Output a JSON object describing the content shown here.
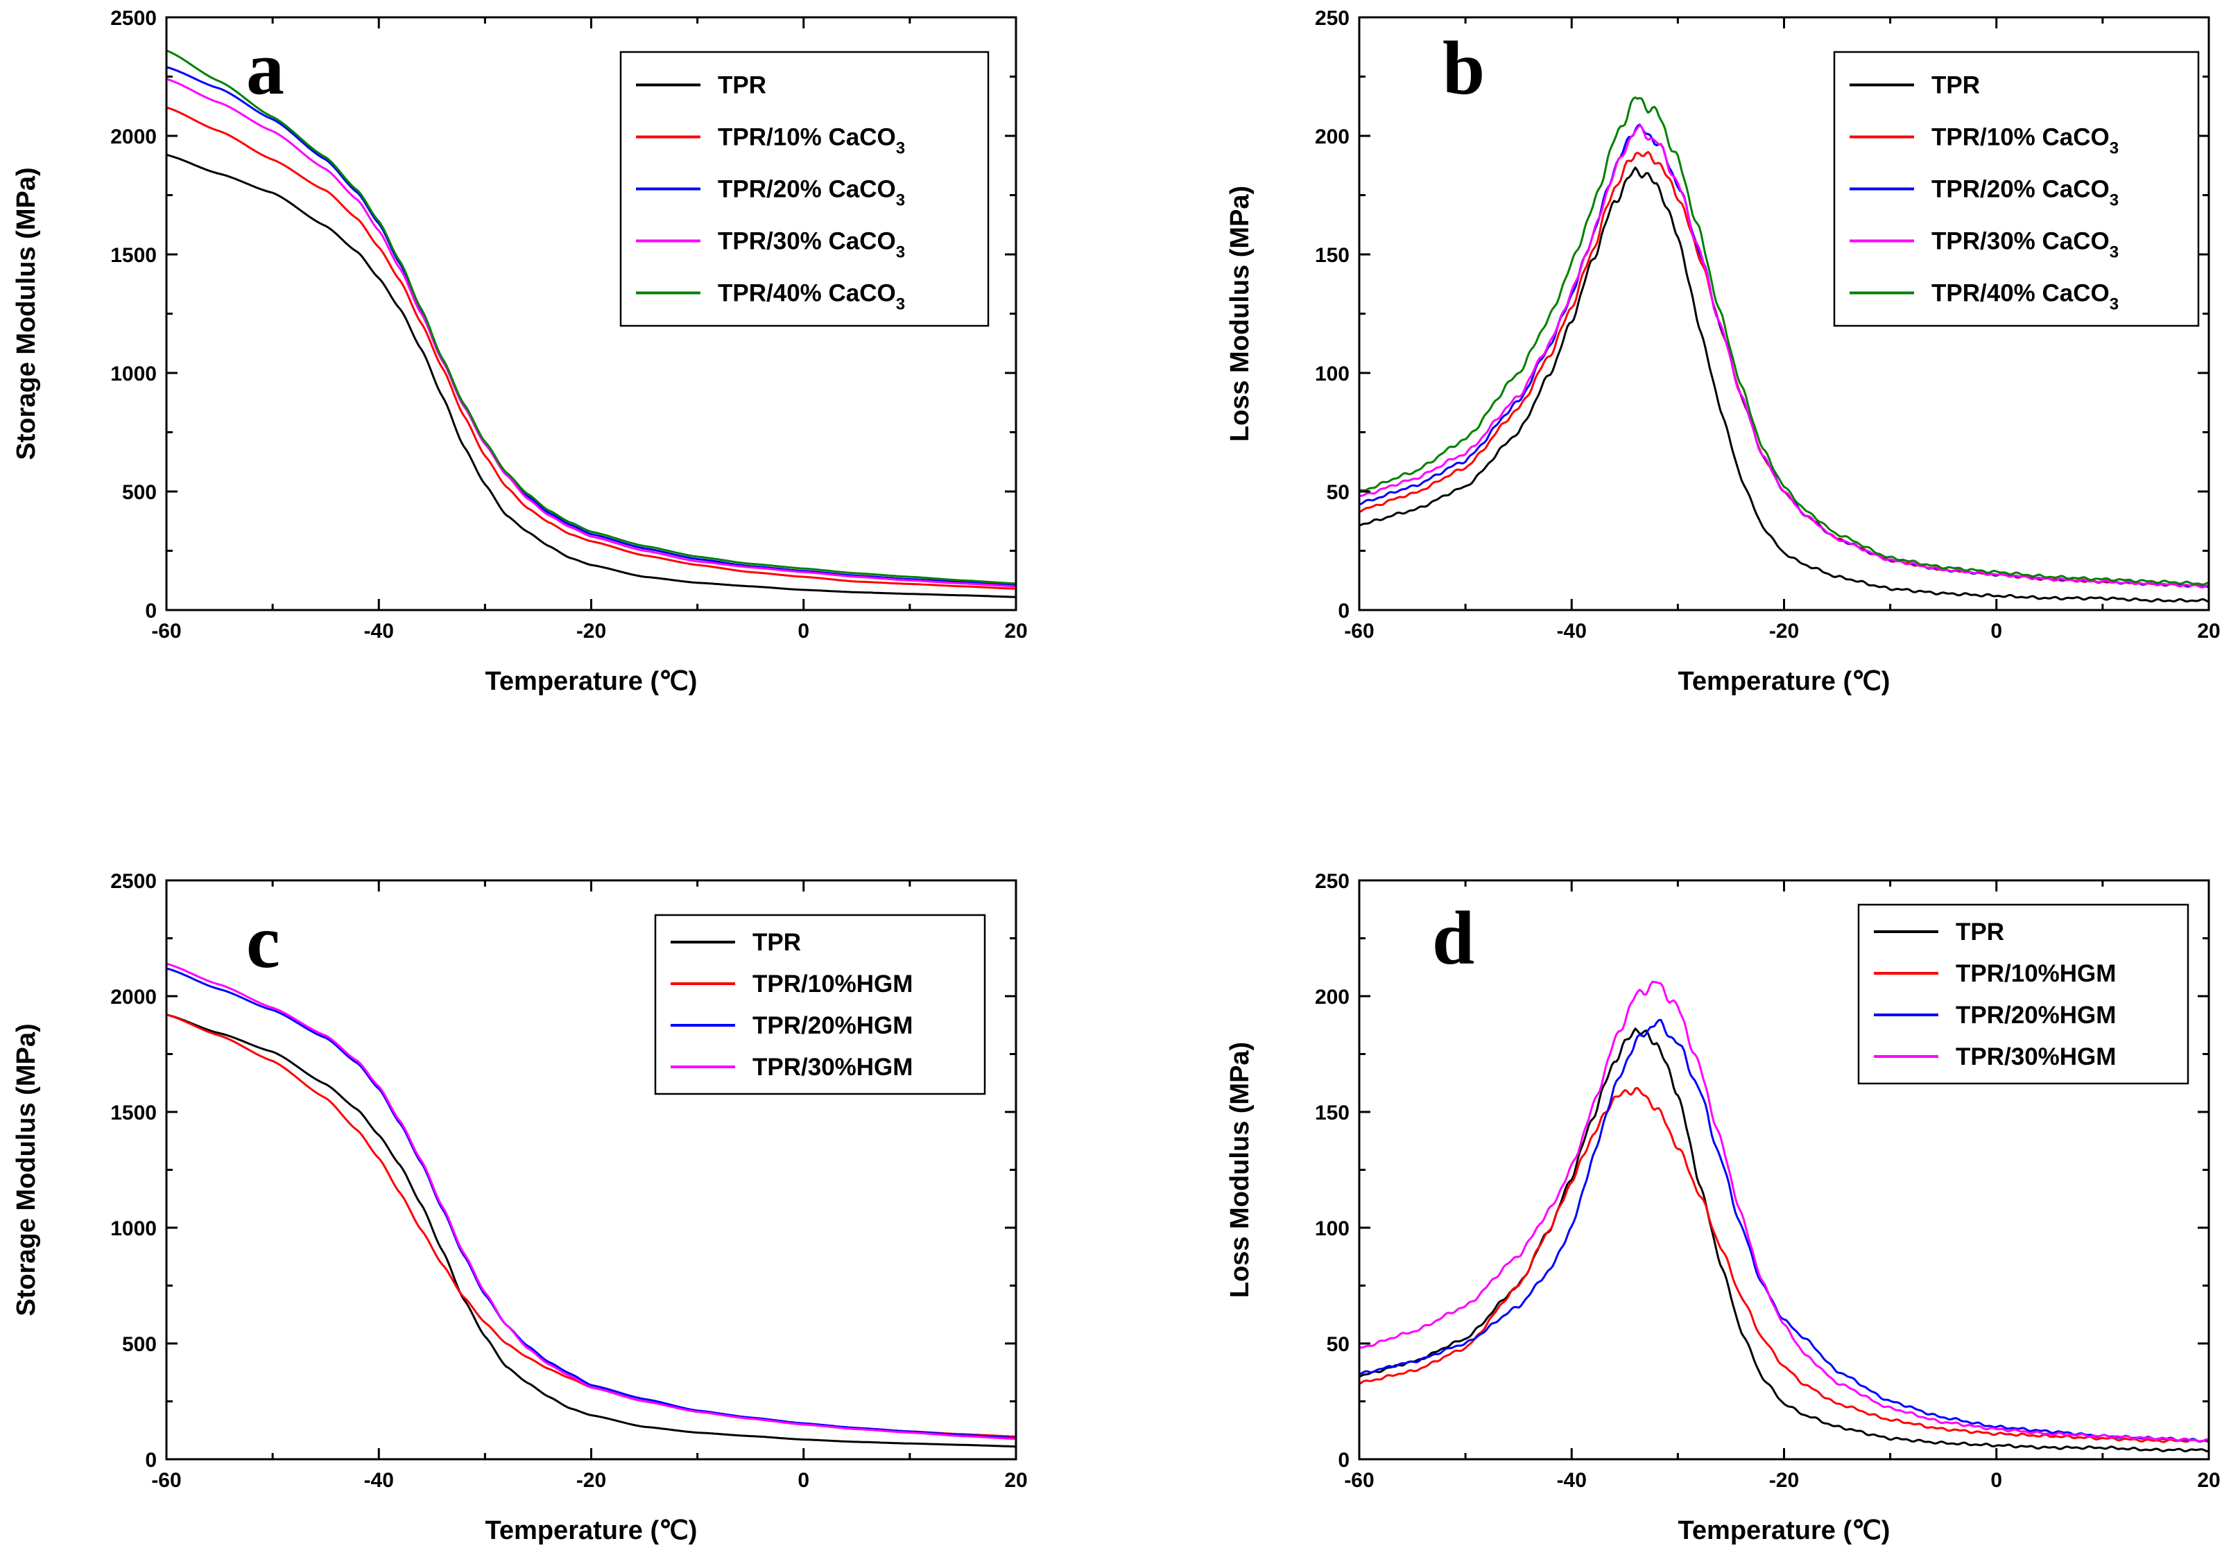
{
  "chart_data": [
    {
      "type": "line",
      "panel": "a",
      "title": "",
      "xlabel": "Temperature (℃)",
      "ylabel": "Storage Modulus (MPa)",
      "xlim": [
        -60,
        20
      ],
      "ylim": [
        0,
        2500
      ],
      "xticks": [
        -60,
        -40,
        -20,
        0,
        20
      ],
      "yticks": [
        0,
        500,
        1000,
        1500,
        2000,
        2500
      ],
      "legend_position": "top-right",
      "x": [
        -60,
        -55,
        -50,
        -45,
        -42,
        -40,
        -38,
        -36,
        -34,
        -32,
        -30,
        -28,
        -26,
        -24,
        -22,
        -20,
        -15,
        -10,
        -5,
        0,
        5,
        10,
        15,
        20
      ],
      "series": [
        {
          "name": "TPR",
          "sub": "",
          "color": "#000000",
          "values": [
            1920,
            1840,
            1760,
            1620,
            1510,
            1400,
            1270,
            1100,
            900,
            690,
            530,
            400,
            330,
            270,
            220,
            190,
            140,
            115,
            100,
            85,
            75,
            68,
            62,
            55
          ]
        },
        {
          "name": "TPR/10% CaCO",
          "sub": "3",
          "color": "#ff0000",
          "values": [
            2120,
            2020,
            1900,
            1770,
            1650,
            1530,
            1390,
            1210,
            1020,
            820,
            650,
            520,
            430,
            370,
            320,
            290,
            230,
            190,
            160,
            140,
            120,
            110,
            100,
            90
          ]
        },
        {
          "name": "TPR/20% CaCO",
          "sub": "3",
          "color": "#0000ff",
          "values": [
            2290,
            2200,
            2070,
            1900,
            1760,
            1630,
            1460,
            1260,
            1050,
            860,
            700,
            570,
            480,
            410,
            360,
            320,
            260,
            215,
            185,
            165,
            145,
            130,
            118,
            108
          ]
        },
        {
          "name": "TPR/30% CaCO",
          "sub": "3",
          "color": "#ff00ff",
          "values": [
            2240,
            2140,
            2020,
            1860,
            1730,
            1600,
            1440,
            1250,
            1050,
            860,
            700,
            570,
            470,
            400,
            350,
            310,
            250,
            205,
            180,
            160,
            140,
            125,
            112,
            100
          ]
        },
        {
          "name": "TPR/40% CaCO",
          "sub": "3",
          "color": "#008000",
          "values": [
            2360,
            2230,
            2080,
            1910,
            1770,
            1640,
            1470,
            1270,
            1060,
            870,
            710,
            580,
            490,
            420,
            370,
            330,
            270,
            225,
            195,
            175,
            155,
            140,
            125,
            112
          ]
        }
      ]
    },
    {
      "type": "line",
      "panel": "b",
      "title": "",
      "xlabel": "Temperature (℃)",
      "ylabel": "Loss Modulus (MPa)",
      "xlim": [
        -60,
        20
      ],
      "ylim": [
        0,
        250
      ],
      "xticks": [
        -60,
        -40,
        -20,
        0,
        20
      ],
      "yticks": [
        0,
        50,
        100,
        150,
        200,
        250
      ],
      "legend_position": "top-right",
      "x": [
        -60,
        -55,
        -50,
        -45,
        -42,
        -40,
        -38,
        -36,
        -34,
        -32,
        -30,
        -28,
        -26,
        -24,
        -22,
        -20,
        -18,
        -15,
        -10,
        -5,
        0,
        5,
        10,
        15,
        20
      ],
      "series": [
        {
          "name": "TPR",
          "sub": "",
          "color": "#000000",
          "values": [
            36,
            42,
            52,
            75,
            100,
            122,
            148,
            172,
            186,
            180,
            158,
            120,
            85,
            55,
            35,
            24,
            19,
            14,
            9,
            7,
            6,
            5,
            5,
            4,
            4
          ]
        },
        {
          "name": "TPR/10% CaCO",
          "sub": "3",
          "color": "#ff0000",
          "values": [
            42,
            49,
            60,
            85,
            108,
            128,
            152,
            178,
            193,
            190,
            175,
            150,
            120,
            90,
            65,
            50,
            40,
            30,
            21,
            17,
            15,
            13,
            12,
            11,
            10
          ]
        },
        {
          "name": "TPR/20% CaCO",
          "sub": "3",
          "color": "#0000ff",
          "values": [
            45,
            52,
            63,
            88,
            112,
            133,
            158,
            186,
            204,
            198,
            180,
            152,
            120,
            90,
            65,
            50,
            40,
            30,
            21,
            17,
            15,
            13,
            12,
            11,
            10
          ]
        },
        {
          "name": "TPR/30% CaCO",
          "sub": "3",
          "color": "#ff00ff",
          "values": [
            48,
            55,
            66,
            90,
            113,
            134,
            158,
            185,
            203,
            198,
            180,
            152,
            120,
            90,
            65,
            50,
            40,
            30,
            21,
            17,
            15,
            13,
            12,
            11,
            10
          ]
        },
        {
          "name": "TPR/40% CaCO",
          "sub": "3",
          "color": "#008000",
          "values": [
            50,
            58,
            72,
            100,
            124,
            146,
            170,
            198,
            216,
            210,
            190,
            160,
            125,
            94,
            68,
            52,
            42,
            32,
            22,
            18,
            16,
            14,
            13,
            12,
            11
          ]
        }
      ]
    },
    {
      "type": "line",
      "panel": "c",
      "title": "",
      "xlabel": "Temperature (℃)",
      "ylabel": "Storage Modulus (MPa)",
      "xlim": [
        -60,
        20
      ],
      "ylim": [
        0,
        2500
      ],
      "xticks": [
        -60,
        -40,
        -20,
        0,
        20
      ],
      "yticks": [
        0,
        500,
        1000,
        1500,
        2000,
        2500
      ],
      "legend_position": "top-right",
      "x": [
        -60,
        -55,
        -50,
        -45,
        -42,
        -40,
        -38,
        -36,
        -34,
        -32,
        -30,
        -28,
        -26,
        -24,
        -22,
        -20,
        -15,
        -10,
        -5,
        0,
        5,
        10,
        15,
        20
      ],
      "series": [
        {
          "name": "TPR",
          "sub": "",
          "color": "#000000",
          "values": [
            1920,
            1840,
            1760,
            1620,
            1510,
            1400,
            1270,
            1100,
            900,
            690,
            530,
            400,
            330,
            270,
            220,
            190,
            140,
            115,
            100,
            85,
            75,
            68,
            62,
            55
          ]
        },
        {
          "name": "TPR/10%HGM",
          "sub": "",
          "color": "#ff0000",
          "values": [
            1920,
            1830,
            1720,
            1560,
            1420,
            1300,
            1150,
            990,
            840,
            700,
            590,
            500,
            440,
            390,
            350,
            310,
            250,
            205,
            175,
            150,
            135,
            120,
            108,
            98
          ]
        },
        {
          "name": "TPR/20%HGM",
          "sub": "",
          "color": "#0000ff",
          "values": [
            2120,
            2030,
            1940,
            1820,
            1710,
            1600,
            1450,
            1280,
            1080,
            880,
            710,
            580,
            490,
            420,
            370,
            320,
            260,
            210,
            180,
            155,
            135,
            120,
            105,
            92
          ]
        },
        {
          "name": "TPR/30%HGM",
          "sub": "",
          "color": "#ff00ff",
          "values": [
            2140,
            2050,
            1950,
            1830,
            1720,
            1610,
            1460,
            1290,
            1090,
            890,
            720,
            580,
            480,
            410,
            360,
            310,
            250,
            205,
            175,
            150,
            130,
            115,
            100,
            88
          ]
        }
      ]
    },
    {
      "type": "line",
      "panel": "d",
      "title": "",
      "xlabel": "Temperature (℃)",
      "ylabel": "Loss Modulus (MPa)",
      "xlim": [
        -60,
        20
      ],
      "ylim": [
        0,
        250
      ],
      "xticks": [
        -60,
        -40,
        -20,
        0,
        20
      ],
      "yticks": [
        0,
        50,
        100,
        150,
        200,
        250
      ],
      "legend_position": "top-right",
      "x": [
        -60,
        -55,
        -50,
        -45,
        -42,
        -40,
        -38,
        -36,
        -34,
        -32,
        -30,
        -28,
        -26,
        -24,
        -22,
        -20,
        -18,
        -15,
        -10,
        -5,
        0,
        5,
        10,
        15,
        20
      ],
      "series": [
        {
          "name": "TPR",
          "sub": "",
          "color": "#000000",
          "values": [
            36,
            42,
            52,
            75,
            100,
            122,
            148,
            172,
            186,
            180,
            158,
            120,
            85,
            55,
            35,
            24,
            19,
            14,
            9,
            7,
            6,
            5,
            5,
            4,
            4
          ]
        },
        {
          "name": "TPR/10%HGM",
          "sub": "",
          "color": "#ff0000",
          "values": [
            33,
            38,
            48,
            75,
            100,
            120,
            140,
            156,
            160,
            152,
            135,
            115,
            92,
            70,
            52,
            40,
            32,
            24,
            17,
            13,
            11,
            10,
            9,
            8,
            8
          ]
        },
        {
          "name": "TPR/20%HGM",
          "sub": "",
          "color": "#0000ff",
          "values": [
            37,
            42,
            50,
            66,
            82,
            100,
            130,
            160,
            180,
            189,
            180,
            160,
            130,
            100,
            75,
            60,
            52,
            38,
            25,
            18,
            14,
            12,
            10,
            9,
            8
          ]
        },
        {
          "name": "TPR/30%HGM",
          "sub": "",
          "color": "#ff00ff",
          "values": [
            48,
            55,
            66,
            88,
            108,
            126,
            152,
            180,
            200,
            206,
            195,
            170,
            138,
            105,
            76,
            58,
            45,
            33,
            22,
            16,
            13,
            11,
            10,
            9,
            8
          ]
        }
      ]
    }
  ]
}
